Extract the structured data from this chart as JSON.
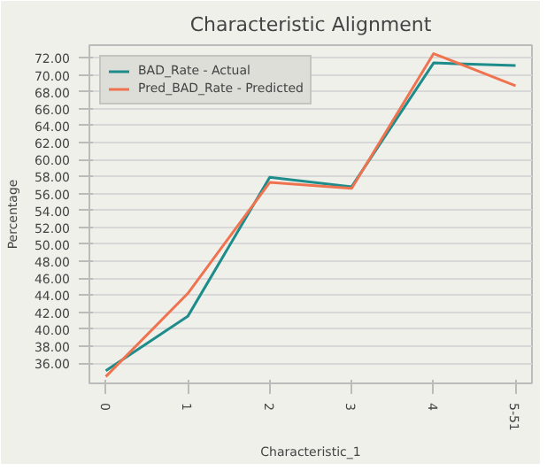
{
  "chart_data": {
    "type": "line",
    "title": "Characteristic Alignment",
    "xlabel": "Characteristic_1",
    "ylabel": "Percentage",
    "categories": [
      "0",
      "1",
      "2",
      "3",
      "4",
      "5-51"
    ],
    "series": [
      {
        "name": "BAD_Rate - Actual",
        "color": "#1e8c8a",
        "values": [
          35.1,
          41.5,
          57.9,
          56.8,
          71.4,
          71.1
        ]
      },
      {
        "name": "Pred_BAD_Rate - Predicted",
        "color": "#f07350",
        "values": [
          34.4,
          44.2,
          57.3,
          56.6,
          72.5,
          68.7
        ]
      }
    ],
    "ylim": [
      33.6,
      73.5
    ],
    "yticks": [
      {
        "value": 36,
        "label": "36.00"
      },
      {
        "value": 38,
        "label": "38.00"
      },
      {
        "value": 40,
        "label": "40.00"
      },
      {
        "value": 42,
        "label": "42.00"
      },
      {
        "value": 44,
        "label": "44.00"
      },
      {
        "value": 46,
        "label": "46.00"
      },
      {
        "value": 48,
        "label": "48.00"
      },
      {
        "value": 50,
        "label": "50.00"
      },
      {
        "value": 52,
        "label": "52.00"
      },
      {
        "value": 54,
        "label": "54.00"
      },
      {
        "value": 56,
        "label": "56.00"
      },
      {
        "value": 58,
        "label": "58.00"
      },
      {
        "value": 60,
        "label": "60.00"
      },
      {
        "value": 62,
        "label": "62.00"
      },
      {
        "value": 64,
        "label": "64.00"
      },
      {
        "value": 66,
        "label": "66.00"
      },
      {
        "value": 68,
        "label": "68.00"
      },
      {
        "value": 70,
        "label": "70.00"
      },
      {
        "value": 72,
        "label": "72.00"
      }
    ],
    "grid": "y",
    "legend": "top left",
    "marker": "none",
    "line_style": "solid"
  }
}
